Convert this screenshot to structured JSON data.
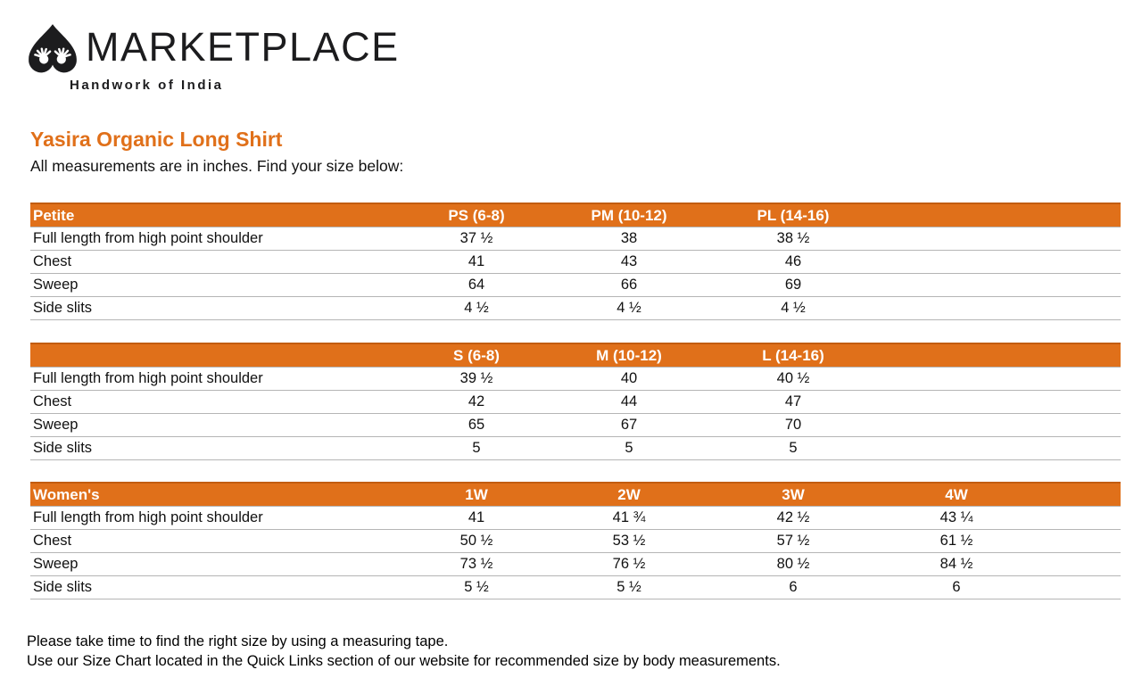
{
  "logo": {
    "brand": "MARKETPLACE",
    "tagline": "Handwork of India",
    "icon": "marketplace-leaf-hands-icon"
  },
  "page": {
    "title": "Yasira Organic Long Shirt",
    "subtitle": "All measurements are in inches. Find your size below:"
  },
  "colors": {
    "accent_orange": "#e0701a",
    "header_text": "#ffffff",
    "row_separator": "#b5b5b5",
    "title_orange": "#e0701a"
  },
  "tables": [
    {
      "id": "petite",
      "name": "Petite",
      "columns": [
        "PS (6-8)",
        "PM (10-12)",
        "PL (14-16)"
      ],
      "rows": [
        {
          "label": "Full length from high point shoulder",
          "values": [
            "37 ½",
            "38",
            "38 ½"
          ]
        },
        {
          "label": "Chest",
          "values": [
            "41",
            "43",
            "46"
          ]
        },
        {
          "label": "Sweep",
          "values": [
            "64",
            "66",
            "69"
          ]
        },
        {
          "label": "Side slits",
          "values": [
            "4 ½",
            "4 ½",
            "4 ½"
          ]
        }
      ]
    },
    {
      "id": "regular",
      "name": "",
      "columns": [
        "S (6-8)",
        "M (10-12)",
        "L (14-16)"
      ],
      "rows": [
        {
          "label": "Full length from high point shoulder",
          "values": [
            "39 ½",
            "40",
            "40 ½"
          ]
        },
        {
          "label": "Chest",
          "values": [
            "42",
            "44",
            "47"
          ]
        },
        {
          "label": "Sweep",
          "values": [
            "65",
            "67",
            "70"
          ]
        },
        {
          "label": "Side slits",
          "values": [
            "5",
            "5",
            "5"
          ]
        }
      ]
    },
    {
      "id": "womens",
      "name": "Women's",
      "columns": [
        "1W",
        "2W",
        "3W",
        "4W"
      ],
      "rows": [
        {
          "label": "Full length from high point shoulder",
          "values": [
            "41",
            "41 ¾",
            "42 ½",
            "43 ¼"
          ]
        },
        {
          "label": "Chest",
          "values": [
            "50 ½",
            "53 ½",
            "57 ½",
            "61 ½"
          ]
        },
        {
          "label": "Sweep",
          "values": [
            "73 ½",
            "76 ½",
            "80 ½",
            "84 ½"
          ]
        },
        {
          "label": "Side slits",
          "values": [
            "5 ½",
            "5 ½",
            "6",
            "6"
          ]
        }
      ]
    }
  ],
  "footer": {
    "line1": "Please take time to find the right size by using a measuring tape.",
    "line2": "Use our Size Chart located in the Quick Links section of our website for recommended size by body measurements."
  }
}
